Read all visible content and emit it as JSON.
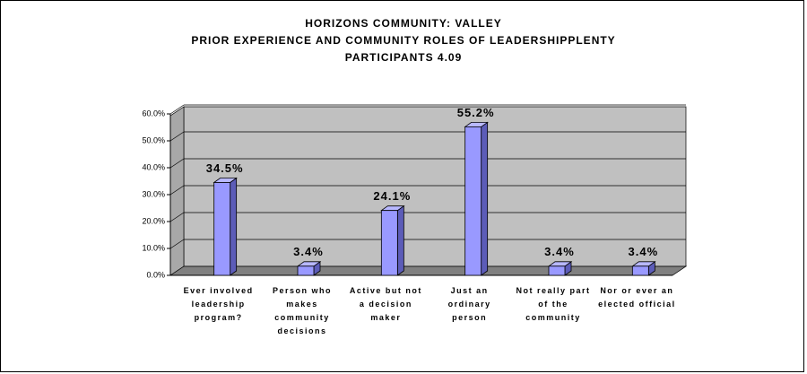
{
  "chart_data": {
    "type": "bar3d",
    "title": [
      "HORIZONS COMMUNITY: VALLEY",
      "PRIOR EXPERIENCE AND COMMUNITY ROLES OF LEADERSHIPPLENTY",
      "PARTICIPANTS 4.09"
    ],
    "categories": [
      "Ever involved leadership program?",
      "Person who makes community decisions",
      "Active but not a decision maker",
      "Just an ordinary person",
      "Not really part of the community",
      "Nor or ever an elected official"
    ],
    "values": [
      34.5,
      3.4,
      24.1,
      55.2,
      3.4,
      3.4
    ],
    "value_labels": [
      "34.5%",
      "3.4%",
      "24.1%",
      "55.2%",
      "3.4%",
      "3.4%"
    ],
    "color": "#9999ff",
    "ylim": [
      0,
      60
    ],
    "yticks": [
      {
        "value": 0,
        "label": "0.0%"
      },
      {
        "value": 10,
        "label": "10.0%"
      },
      {
        "value": 20,
        "label": "20.0%"
      },
      {
        "value": 30,
        "label": "30.0%"
      },
      {
        "value": 40,
        "label": "40.0%"
      },
      {
        "value": 50,
        "label": "50.0%"
      },
      {
        "value": 60,
        "label": "60.0%"
      }
    ],
    "grid": true
  }
}
